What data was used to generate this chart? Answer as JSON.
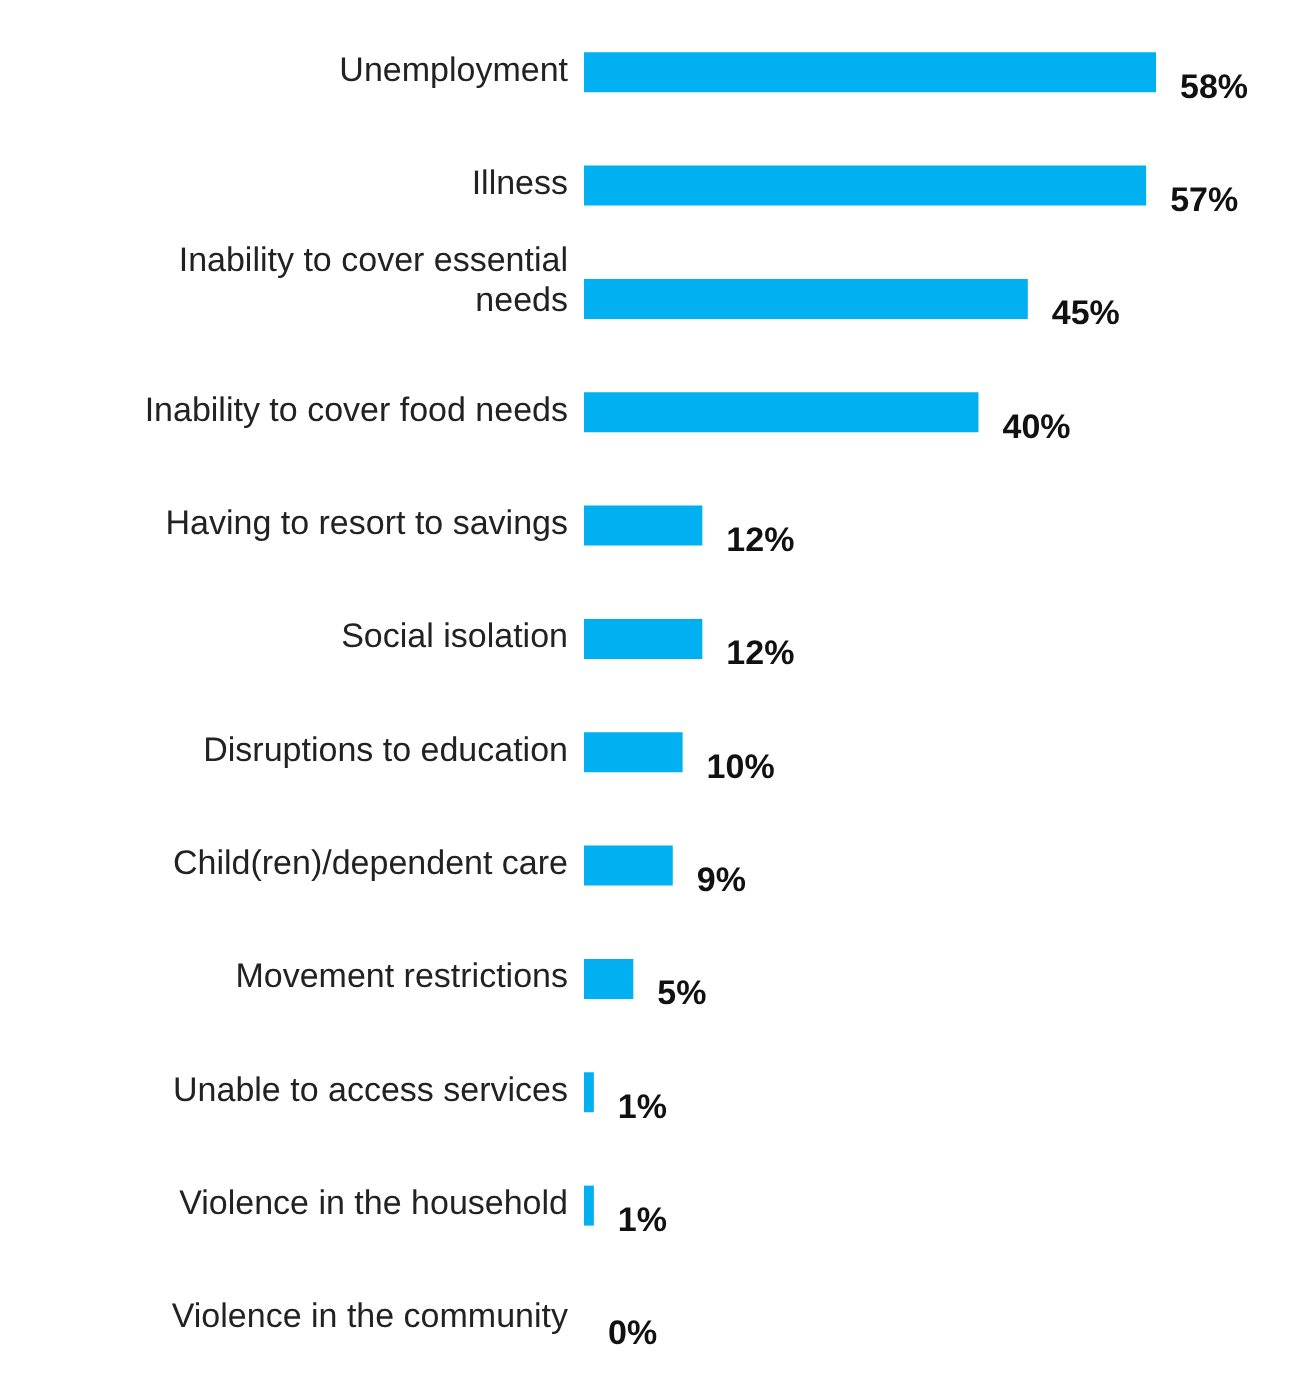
{
  "chart_data": {
    "type": "bar",
    "orientation": "horizontal",
    "categories": [
      "Unemployment",
      "Illness",
      "Inability to cover essential needs",
      "Inability to cover food needs",
      "Having to resort to savings",
      "Social isolation",
      "Disruptions to education",
      "Child(ren)/dependent care",
      "Movement restrictions",
      "Unable to access services",
      "Violence in the household",
      "Violence in the community"
    ],
    "values": [
      58,
      57,
      45,
      40,
      12,
      12,
      10,
      9,
      5,
      1,
      1,
      0
    ],
    "value_labels": [
      "58%",
      "57%",
      "45%",
      "40%",
      "12%",
      "12%",
      "10%",
      "9%",
      "5%",
      "1%",
      "1%",
      "0%"
    ],
    "color": "#00b0f0",
    "grid": false,
    "legend": false
  }
}
